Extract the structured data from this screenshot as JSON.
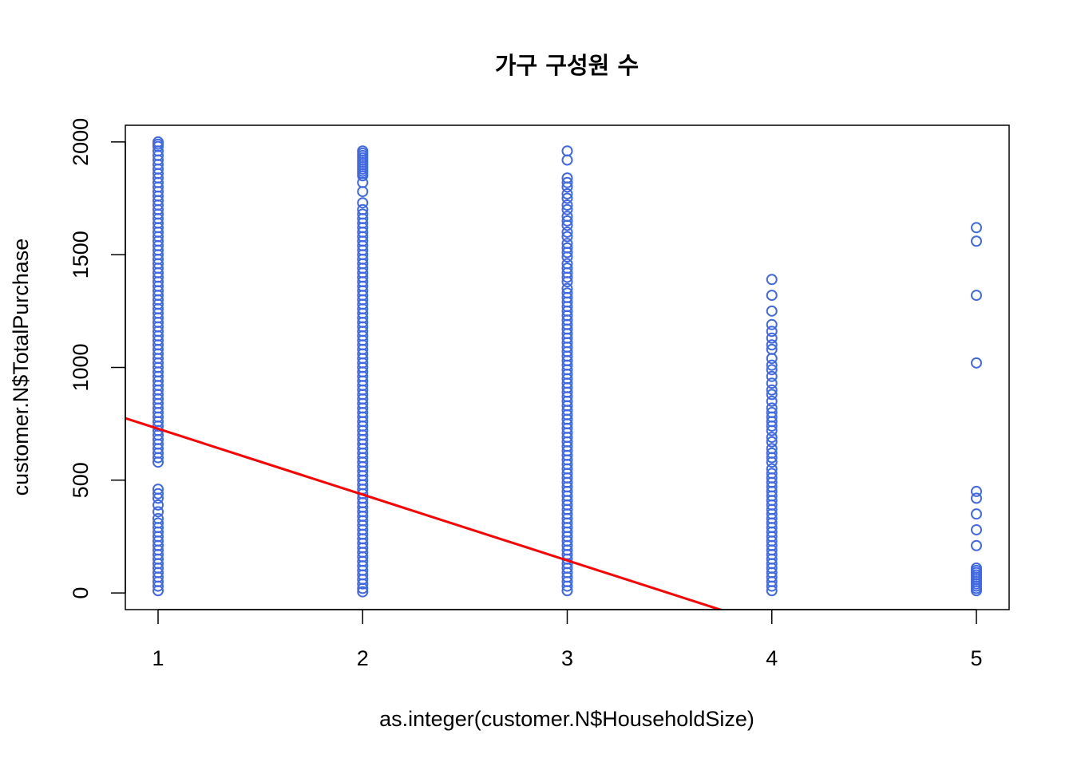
{
  "chart_data": {
    "type": "scatter",
    "title": "가구 구성원 수",
    "xlabel": "as.integer(customer.N$HouseholdSize)",
    "ylabel": "customer.N$TotalPurchase",
    "x_ticks": [
      "1",
      "2",
      "3",
      "4",
      "5"
    ],
    "y_ticks": [
      "0",
      "500",
      "1000",
      "1500",
      "2000"
    ],
    "xlim": [
      0.84,
      5.16
    ],
    "ylim": [
      -74,
      2074
    ],
    "grid": false,
    "legend": "none",
    "point_color": "#4169E1",
    "line_color": "#FF0000",
    "series": [
      {
        "x": 1,
        "values": [
          2000,
          1990,
          1980,
          1960,
          1940,
          1920,
          1900,
          1880,
          1860,
          1840,
          1820,
          1800,
          1780,
          1760,
          1740,
          1720,
          1700,
          1680,
          1660,
          1640,
          1620,
          1600,
          1580,
          1560,
          1540,
          1520,
          1500,
          1480,
          1460,
          1440,
          1420,
          1400,
          1380,
          1360,
          1340,
          1320,
          1300,
          1280,
          1260,
          1240,
          1220,
          1200,
          1180,
          1160,
          1140,
          1120,
          1100,
          1080,
          1060,
          1040,
          1020,
          1000,
          980,
          960,
          940,
          920,
          900,
          880,
          860,
          840,
          820,
          800,
          780,
          760,
          740,
          720,
          700,
          680,
          660,
          640,
          620,
          600,
          580,
          460,
          440,
          420,
          390,
          360,
          330,
          310,
          290,
          270,
          250,
          230,
          210,
          190,
          170,
          150,
          130,
          110,
          90,
          70,
          50,
          30,
          10
        ]
      },
      {
        "x": 2,
        "values": [
          1960,
          1950,
          1940,
          1930,
          1920,
          1910,
          1900,
          1890,
          1880,
          1870,
          1860,
          1850,
          1820,
          1780,
          1730,
          1700,
          1680,
          1660,
          1640,
          1620,
          1600,
          1580,
          1560,
          1540,
          1520,
          1500,
          1480,
          1460,
          1440,
          1420,
          1400,
          1380,
          1360,
          1340,
          1320,
          1300,
          1280,
          1260,
          1240,
          1220,
          1200,
          1180,
          1160,
          1140,
          1120,
          1100,
          1080,
          1060,
          1040,
          1020,
          1000,
          980,
          960,
          940,
          920,
          900,
          880,
          860,
          840,
          820,
          800,
          780,
          760,
          740,
          720,
          700,
          680,
          660,
          640,
          620,
          600,
          580,
          560,
          540,
          520,
          500,
          480,
          460,
          440,
          420,
          400,
          380,
          360,
          340,
          320,
          300,
          280,
          260,
          240,
          220,
          200,
          180,
          160,
          140,
          120,
          100,
          80,
          60,
          40,
          20,
          5
        ]
      },
      {
        "x": 3,
        "values": [
          1960,
          1920,
          1840,
          1820,
          1800,
          1770,
          1750,
          1720,
          1700,
          1670,
          1650,
          1630,
          1600,
          1580,
          1550,
          1530,
          1510,
          1490,
          1460,
          1440,
          1420,
          1400,
          1380,
          1350,
          1330,
          1310,
          1290,
          1270,
          1250,
          1230,
          1210,
          1190,
          1170,
          1150,
          1130,
          1110,
          1090,
          1070,
          1050,
          1030,
          1010,
          990,
          970,
          950,
          930,
          910,
          890,
          870,
          850,
          830,
          810,
          790,
          770,
          750,
          730,
          710,
          690,
          670,
          650,
          630,
          610,
          590,
          570,
          550,
          530,
          510,
          490,
          470,
          450,
          430,
          410,
          390,
          370,
          350,
          330,
          310,
          290,
          270,
          250,
          230,
          210,
          190,
          170,
          150,
          130,
          110,
          90,
          70,
          50,
          30,
          10
        ]
      },
      {
        "x": 4,
        "values": [
          1390,
          1320,
          1250,
          1190,
          1160,
          1130,
          1100,
          1080,
          1040,
          1010,
          990,
          960,
          930,
          900,
          880,
          850,
          820,
          800,
          780,
          760,
          740,
          720,
          690,
          670,
          640,
          620,
          600,
          580,
          550,
          530,
          510,
          490,
          470,
          450,
          430,
          410,
          390,
          370,
          350,
          330,
          310,
          290,
          270,
          250,
          230,
          210,
          190,
          170,
          150,
          130,
          110,
          90,
          70,
          50,
          30,
          10
        ]
      },
      {
        "x": 5,
        "values": [
          1620,
          1560,
          1320,
          1020,
          450,
          420,
          350,
          280,
          210,
          110,
          100,
          90,
          80,
          70,
          60,
          50,
          40,
          30,
          20,
          10
        ]
      }
    ],
    "regression_line": {
      "intercept": 1020,
      "slope": -292
    }
  }
}
